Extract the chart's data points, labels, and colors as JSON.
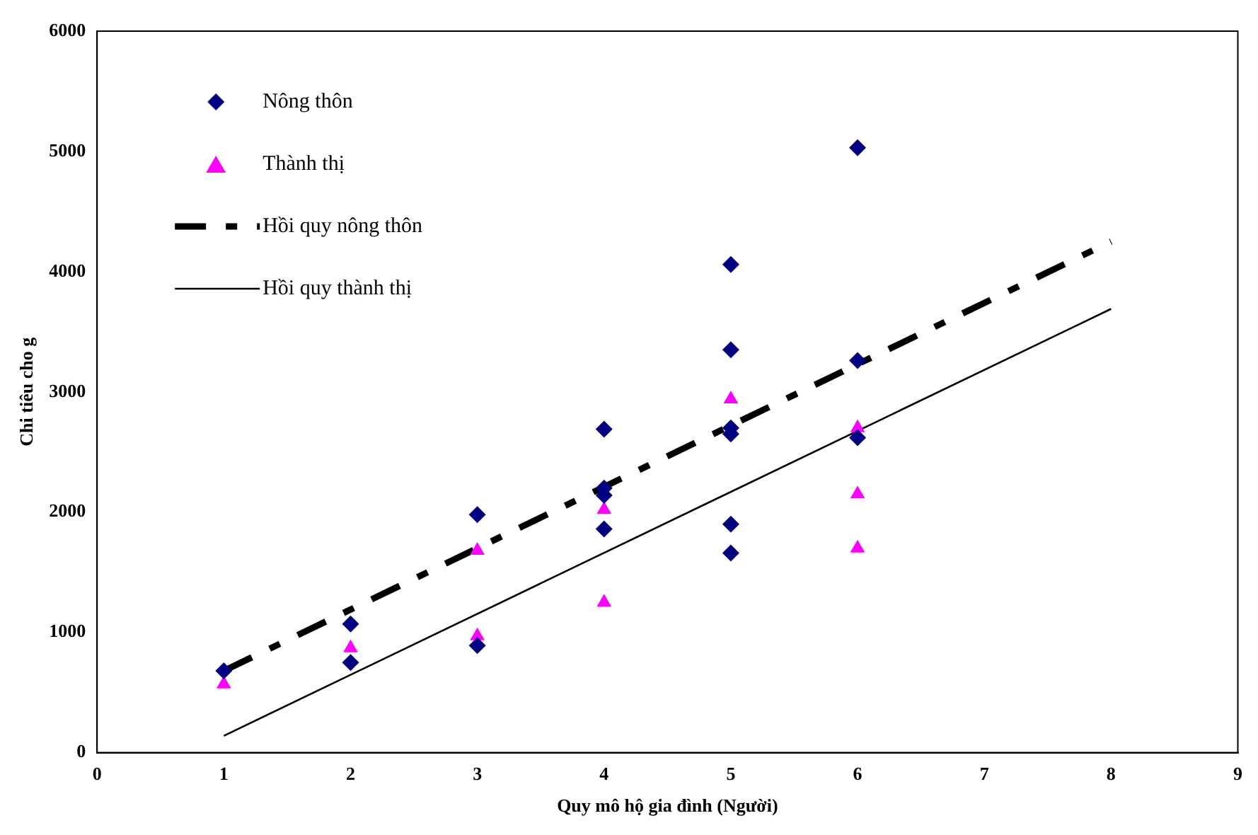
{
  "chart_data": {
    "type": "scatter",
    "xlabel": "Quy mô hộ gia đình (Người)",
    "ylabel": "Chi tiêu cho g",
    "xlim": [
      0,
      9
    ],
    "xticks": [
      0,
      1,
      2,
      3,
      4,
      5,
      6,
      7,
      8,
      9
    ],
    "ylim": [
      0,
      6000
    ],
    "yticks": [
      0,
      1000,
      2000,
      3000,
      4000,
      5000,
      6000
    ],
    "grid": false,
    "legend": "top left",
    "series": [
      {
        "name": "Nông thôn",
        "marker": "diamond",
        "color": "#000080",
        "x": [
          1,
          2,
          2,
          3,
          3,
          4,
          4,
          4,
          4,
          5,
          5,
          5,
          5,
          5,
          5,
          6,
          6,
          6
        ],
        "values": [
          680,
          1070,
          750,
          1980,
          890,
          2690,
          2200,
          2140,
          1860,
          4060,
          3350,
          2700,
          2650,
          1900,
          1660,
          5030,
          3260,
          2620
        ]
      },
      {
        "name": "Thành thị",
        "marker": "triangle",
        "color": "#ff00ff",
        "x": [
          1,
          2,
          3,
          3,
          4,
          4,
          5,
          6,
          6,
          6
        ],
        "values": [
          570,
          870,
          1680,
          970,
          2020,
          1250,
          2940,
          2700,
          2150,
          1700
        ]
      },
      {
        "name": "Hồi quy nông thôn",
        "type": "line",
        "marker": "none",
        "line_style": "dashed",
        "color": "#000000",
        "x": [
          1,
          8
        ],
        "values": [
          680,
          4250
        ]
      },
      {
        "name": "Hồi quy thành thị",
        "type": "line",
        "marker": "none",
        "line_style": "solid",
        "color": "#000000",
        "x": [
          1,
          8
        ],
        "values": [
          140,
          3690
        ]
      }
    ]
  }
}
